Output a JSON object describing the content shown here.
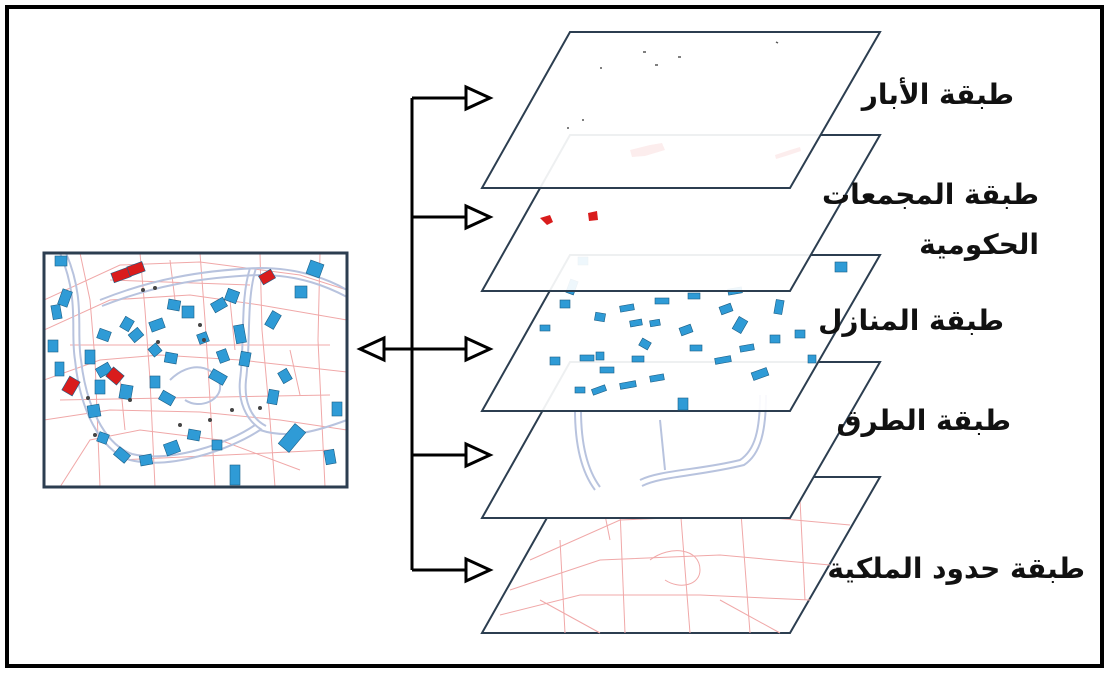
{
  "layers": [
    {
      "label": "طبقة الأبار"
    },
    {
      "label": "طبقة المجمعات",
      "label_line2": "الحكومية"
    },
    {
      "label": "طبقة المنازل"
    },
    {
      "label": "طبقة الطرق"
    },
    {
      "label": "طبقة حدود الملكية"
    }
  ],
  "colors": {
    "frame": "#000000",
    "plane": "#2c3e50",
    "house": "#2f9bd6",
    "government": "#d91c1c",
    "well": "#444444",
    "road": "#b8c3de",
    "parcel": "#f0a8a8"
  },
  "icons": {
    "arrow": "outline-triangle-arrowhead"
  }
}
